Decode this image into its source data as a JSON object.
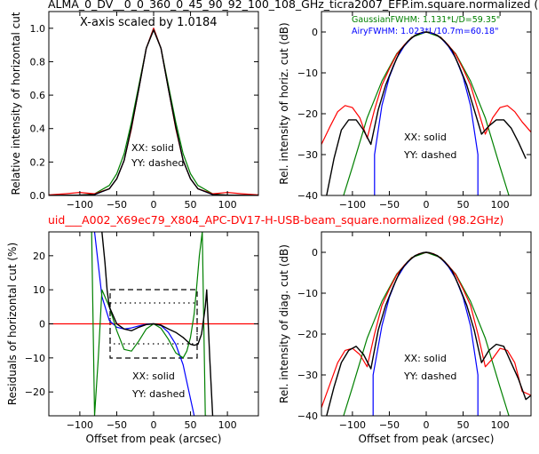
{
  "figure": {
    "title_top": "ALMA_0_DV__0_0_360_0_45_90_92_100_108_GHz_ticra2007_EFP.im.square.normalized (",
    "title_mid": "uid___A002_X69ec79_X804_APC-DV17-H-USB-beam_square.normalized (98.2GHz)",
    "scale_note": "X-axis scaled by 1.0184",
    "colors": {
      "model": "#ff0000",
      "measured": "#000000",
      "gaussian": "#008000",
      "airy": "#0000ff"
    }
  },
  "chart_data": [
    {
      "id": "p1",
      "type": "line",
      "xlabel": "",
      "ylabel": "Relative intensity of horizontal cut",
      "xlim": [
        -142,
        142
      ],
      "ylim": [
        0,
        1.1
      ],
      "xticks": [
        -100,
        -50,
        0,
        50,
        100
      ],
      "yticks": [
        0.0,
        0.2,
        0.4,
        0.6,
        0.8,
        1.0
      ],
      "ytick_labels": [
        "0.0",
        "0.2",
        "0.4",
        "0.6",
        "0.8",
        "1.0"
      ],
      "annotations": [
        "XX: solid",
        "YY: dashed"
      ],
      "series": [
        {
          "color": "#0000ff",
          "x": [
            -142,
            -100,
            -80,
            -60,
            -50,
            -40,
            -30,
            -20,
            -10,
            0,
            10,
            20,
            30,
            40,
            50,
            60,
            80,
            100,
            142
          ],
          "y": [
            0,
            0,
            0.005,
            0.04,
            0.1,
            0.21,
            0.41,
            0.64,
            0.88,
            1.0,
            0.88,
            0.64,
            0.41,
            0.21,
            0.1,
            0.04,
            0.005,
            0,
            0
          ]
        },
        {
          "color": "#008000",
          "x": [
            -142,
            -100,
            -80,
            -60,
            -50,
            -40,
            -30,
            -20,
            -10,
            0,
            10,
            20,
            30,
            40,
            50,
            60,
            80,
            100,
            142
          ],
          "y": [
            0,
            0.001,
            0.01,
            0.06,
            0.13,
            0.25,
            0.44,
            0.66,
            0.88,
            1.0,
            0.88,
            0.66,
            0.44,
            0.25,
            0.13,
            0.06,
            0.01,
            0.001,
            0
          ]
        },
        {
          "color": "#ff0000",
          "x": [
            -142,
            -120,
            -100,
            -80,
            -60,
            -50,
            -40,
            -30,
            -20,
            -10,
            0,
            10,
            20,
            30,
            40,
            50,
            60,
            80,
            100,
            120,
            142
          ],
          "y": [
            0.003,
            0.01,
            0.018,
            0.01,
            0.04,
            0.1,
            0.21,
            0.4,
            0.64,
            0.88,
            1.0,
            0.88,
            0.64,
            0.4,
            0.21,
            0.1,
            0.04,
            0.01,
            0.018,
            0.01,
            0.003
          ]
        },
        {
          "color": "#000000",
          "x": [
            -142,
            -100,
            -80,
            -60,
            -50,
            -40,
            -30,
            -20,
            -10,
            0,
            10,
            20,
            30,
            40,
            50,
            60,
            80,
            100,
            142
          ],
          "y": [
            0,
            0.002,
            0.006,
            0.04,
            0.1,
            0.21,
            0.41,
            0.64,
            0.88,
            0.99,
            0.88,
            0.64,
            0.41,
            0.21,
            0.1,
            0.04,
            0.006,
            0.002,
            0
          ]
        }
      ]
    },
    {
      "id": "p2",
      "type": "line",
      "xlabel": "",
      "ylabel": "Rel. intensity of horiz. cut (dB)",
      "xlim": [
        -142,
        142
      ],
      "ylim": [
        -40,
        5
      ],
      "xticks": [
        -100,
        -50,
        0,
        50,
        100
      ],
      "yticks": [
        -40,
        -30,
        -20,
        -10,
        0
      ],
      "legend": [
        "GaussianFWHM: 1.131*L/D=59.35\"",
        "AiryFWHM: 1.023*L/10.7m=60.18\""
      ],
      "annotations": [
        "XX: solid",
        "YY: dashed"
      ],
      "series": [
        {
          "color": "#0000ff",
          "x": [
            -70,
            -70,
            -60,
            -50,
            -40,
            -30,
            -20,
            -10,
            0,
            10,
            20,
            30,
            40,
            50,
            60,
            70,
            70
          ],
          "y": [
            -40,
            -30,
            -18,
            -11,
            -6.4,
            -3.5,
            -1.5,
            -0.4,
            0,
            -0.4,
            -1.5,
            -3.5,
            -6.4,
            -11,
            -18,
            -30,
            -40
          ]
        },
        {
          "color": "#008000",
          "x": [
            -112,
            -100,
            -80,
            -60,
            -40,
            -20,
            0,
            20,
            40,
            60,
            80,
            100,
            112
          ],
          "y": [
            -40,
            -33,
            -21,
            -12,
            -5.3,
            -1.3,
            0,
            -1.3,
            -5.3,
            -12,
            -21,
            -33,
            -40
          ]
        },
        {
          "color": "#ff0000",
          "x": [
            -142,
            -130,
            -120,
            -110,
            -100,
            -90,
            -80,
            -70,
            -60,
            -50,
            -40,
            -30,
            -20,
            -10,
            0,
            10,
            20,
            30,
            40,
            50,
            60,
            70,
            80,
            90,
            100,
            110,
            120,
            130,
            142
          ],
          "y": [
            -27.5,
            -23,
            -19.5,
            -18,
            -18.5,
            -21,
            -26,
            -19,
            -13,
            -9,
            -5.5,
            -3.2,
            -1.4,
            -0.35,
            0,
            -0.35,
            -1.4,
            -3.2,
            -5.5,
            -9,
            -13,
            -19,
            -25,
            -21,
            -18.5,
            -18,
            -19.5,
            -22,
            -24.5
          ]
        },
        {
          "color": "#000000",
          "x": [
            -135,
            -125,
            -115,
            -105,
            -95,
            -85,
            -75,
            -65,
            -55,
            -45,
            -35,
            -25,
            -15,
            -5,
            0,
            5,
            15,
            25,
            35,
            45,
            55,
            65,
            75,
            85,
            95,
            105,
            115,
            125,
            135
          ],
          "y": [
            -40,
            -31,
            -24,
            -21.5,
            -21.5,
            -24,
            -27.5,
            -19,
            -13,
            -8.5,
            -4.5,
            -2.3,
            -0.8,
            -0.1,
            0,
            -0.1,
            -0.8,
            -2.3,
            -4.5,
            -8.5,
            -13,
            -19,
            -25,
            -23,
            -21.5,
            -21.5,
            -23.5,
            -27,
            -31
          ]
        }
      ]
    },
    {
      "id": "p3",
      "type": "line",
      "xlabel": "Offset from peak (arcsec)",
      "ylabel": "Residuals of horizontal cut (%)",
      "xlim": [
        -142,
        142
      ],
      "ylim": [
        -27,
        27
      ],
      "xticks": [
        -100,
        -50,
        0,
        50,
        100
      ],
      "yticks": [
        -20,
        -10,
        0,
        10,
        20
      ],
      "annotations": [
        "XX: solid",
        "YY: dashed"
      ],
      "series": [
        {
          "color": "#ff0000",
          "x": [
            -142,
            142
          ],
          "y": [
            0,
            0
          ]
        },
        {
          "color": "#0000ff",
          "x": [
            -80,
            -70,
            -60,
            -50,
            -40,
            -30,
            -20,
            -10,
            0,
            10,
            20,
            30,
            40,
            50,
            55
          ],
          "y": [
            27,
            8,
            1,
            -1,
            -1.5,
            -1.2,
            -0.6,
            -0.1,
            0,
            -0.5,
            -2.5,
            -6,
            -12,
            -22,
            -27
          ]
        },
        {
          "color": "#008000",
          "x": [
            -84,
            -80,
            -75,
            -70,
            -60,
            -50,
            -40,
            -30,
            -20,
            -10,
            0,
            10,
            20,
            30,
            40,
            45,
            50,
            55,
            58,
            62,
            66,
            70,
            72
          ],
          "y": [
            27,
            -27,
            -10,
            10,
            5,
            -2,
            -7.5,
            -8,
            -5,
            -1.5,
            0,
            -1.3,
            -4.5,
            -8.5,
            -10,
            -8,
            -4,
            3,
            10,
            20,
            27,
            -27,
            -27
          ]
        },
        {
          "color": "#000000",
          "x": [
            -70,
            -66,
            -63,
            -60,
            -50,
            -40,
            -30,
            -20,
            -10,
            0,
            10,
            20,
            30,
            40,
            50,
            55,
            60,
            65,
            70,
            72,
            76,
            80
          ],
          "y": [
            27,
            18,
            10,
            5,
            0,
            -1.5,
            -2,
            -1,
            -0.2,
            0,
            -0.4,
            -1.5,
            -2.5,
            -4,
            -6,
            -6.3,
            -6,
            -3,
            5,
            10,
            -10,
            -27
          ]
        }
      ]
    },
    {
      "id": "p4",
      "type": "line",
      "xlabel": "Offset from peak (arcsec)",
      "ylabel": "Rel. intensity of diag. cut (dB)",
      "xlim": [
        -142,
        142
      ],
      "ylim": [
        -40,
        5
      ],
      "xticks": [
        -100,
        -50,
        0,
        50,
        100
      ],
      "yticks": [
        -40,
        -30,
        -20,
        -10,
        0
      ],
      "annotations": [
        "XX: solid",
        "YY: dashed"
      ],
      "series": [
        {
          "color": "#0000ff",
          "x": [
            -72,
            -72,
            -60,
            -50,
            -40,
            -30,
            -20,
            -10,
            0,
            10,
            20,
            30,
            40,
            50,
            60,
            70,
            70
          ],
          "y": [
            -40,
            -30,
            -18,
            -11,
            -6.4,
            -3.5,
            -1.5,
            -0.4,
            0,
            -0.4,
            -1.5,
            -3.5,
            -6.4,
            -11,
            -18,
            -30,
            -40
          ]
        },
        {
          "color": "#008000",
          "x": [
            -112,
            -100,
            -80,
            -60,
            -40,
            -20,
            0,
            20,
            40,
            60,
            80,
            100,
            112
          ],
          "y": [
            -40,
            -33,
            -21,
            -12,
            -5.3,
            -1.3,
            0,
            -1.3,
            -5.3,
            -12,
            -21,
            -33,
            -40
          ]
        },
        {
          "color": "#ff0000",
          "x": [
            -142,
            -130,
            -120,
            -110,
            -100,
            -90,
            -80,
            -70,
            -60,
            -50,
            -40,
            -30,
            -20,
            -10,
            0,
            10,
            20,
            30,
            40,
            50,
            60,
            70,
            80,
            90,
            100,
            110,
            120,
            130,
            142
          ],
          "y": [
            -38,
            -32,
            -27,
            -24,
            -23.5,
            -25,
            -28,
            -20,
            -13,
            -9,
            -5.5,
            -3.2,
            -1.4,
            -0.35,
            0,
            -0.35,
            -1.4,
            -3.2,
            -5.5,
            -9,
            -13,
            -20,
            -28,
            -26,
            -23.5,
            -24,
            -27,
            -34,
            -35
          ]
        },
        {
          "color": "#000000",
          "x": [
            -135,
            -125,
            -115,
            -105,
            -95,
            -85,
            -75,
            -65,
            -55,
            -45,
            -35,
            -25,
            -15,
            -5,
            0,
            5,
            15,
            25,
            35,
            45,
            55,
            65,
            75,
            85,
            95,
            105,
            115,
            125,
            135,
            142
          ],
          "y": [
            -40,
            -33,
            -27,
            -24,
            -23,
            -25,
            -28.5,
            -19,
            -13,
            -8.5,
            -4.5,
            -2.3,
            -0.8,
            -0.1,
            0,
            -0.1,
            -0.8,
            -2.3,
            -4.5,
            -8.5,
            -13,
            -19,
            -27,
            -24,
            -22.5,
            -23,
            -27,
            -31,
            -36,
            -35
          ]
        }
      ]
    }
  ]
}
